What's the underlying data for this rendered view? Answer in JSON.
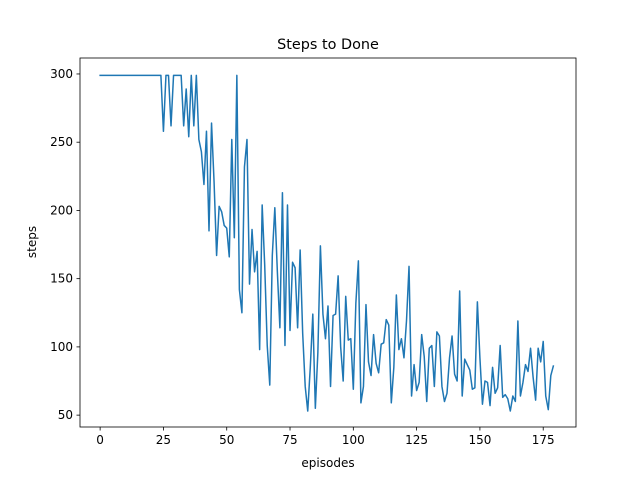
{
  "chart_data": {
    "type": "line",
    "title": "Steps to Done",
    "xlabel": "episodes",
    "ylabel": "steps",
    "xlim": [
      -7.95,
      187.95
    ],
    "ylim": [
      41.3,
      311.7
    ],
    "xticks": [
      0,
      25,
      50,
      75,
      100,
      125,
      150,
      175
    ],
    "yticks": [
      50,
      100,
      150,
      200,
      250,
      300
    ],
    "grid": false,
    "line_color": "#1f77b4",
    "series": [
      {
        "x": [
          0,
          1,
          2,
          3,
          4,
          5,
          6,
          7,
          8,
          9,
          10,
          11,
          12,
          13,
          14,
          15,
          16,
          17,
          18,
          19,
          20,
          21,
          22,
          23,
          24,
          25,
          26,
          27,
          28,
          29,
          30,
          31,
          32,
          33,
          34,
          35,
          36,
          37,
          38,
          39,
          40,
          41,
          42,
          43,
          44,
          45,
          46,
          47,
          48,
          49,
          50,
          51,
          52,
          53,
          54,
          55,
          56,
          57,
          58,
          59,
          60,
          61,
          62,
          63,
          64,
          65,
          66,
          67,
          68,
          69,
          70,
          71,
          72,
          73,
          74,
          75,
          76,
          77,
          78,
          79,
          80,
          81,
          82,
          83,
          84,
          85,
          86,
          87,
          88,
          89,
          90,
          91,
          92,
          93,
          94,
          95,
          96,
          97,
          98,
          99,
          100,
          101,
          102,
          103,
          104,
          105,
          106,
          107,
          108,
          109,
          110,
          111,
          112,
          113,
          114,
          115,
          116,
          117,
          118,
          119,
          120,
          121,
          122,
          123,
          124,
          125,
          126,
          127,
          128,
          129,
          130,
          131,
          132,
          133,
          134,
          135,
          136,
          137,
          138,
          139,
          140,
          141,
          142,
          143,
          144,
          145,
          146,
          147,
          148,
          149,
          150,
          151,
          152,
          153,
          154,
          155,
          156,
          157,
          158,
          159,
          160,
          161,
          162,
          163,
          164,
          165,
          166,
          167,
          168,
          169,
          170,
          171,
          172,
          173,
          174,
          175,
          176,
          177,
          178,
          179
        ],
        "values": [
          299,
          299,
          299,
          299,
          299,
          299,
          299,
          299,
          299,
          299,
          299,
          299,
          299,
          299,
          299,
          299,
          299,
          299,
          299,
          299,
          299,
          299,
          299,
          299,
          299,
          258,
          299,
          299,
          262,
          299,
          299,
          299,
          299,
          262,
          289,
          254,
          299,
          262,
          299,
          252,
          243,
          219,
          258,
          185,
          264,
          221,
          167,
          203,
          199,
          189,
          187,
          166,
          252,
          180,
          299,
          142,
          125,
          232,
          252,
          146,
          186,
          155,
          170,
          98,
          204,
          160,
          101,
          72,
          167,
          202,
          155,
          114,
          213,
          101,
          204,
          112,
          162,
          158,
          114,
          171,
          110,
          71,
          53,
          85,
          124,
          55,
          96,
          174,
          124,
          106,
          130,
          71,
          123,
          124,
          152,
          100,
          75,
          137,
          105,
          106,
          69,
          132,
          163,
          59,
          71,
          131,
          89,
          79,
          109,
          88,
          81,
          102,
          103,
          120,
          116,
          59,
          85,
          138,
          98,
          106,
          92,
          119,
          159,
          64,
          87,
          68,
          74,
          109,
          93,
          60,
          99,
          101,
          71,
          111,
          108,
          71,
          60,
          66,
          92,
          108,
          80,
          75,
          141,
          64,
          91,
          87,
          83,
          69,
          70,
          133,
          92,
          58,
          75,
          74,
          57,
          85,
          66,
          70,
          101,
          63,
          65,
          62,
          53,
          64,
          60,
          119,
          64,
          74,
          87,
          82,
          99,
          78,
          61,
          99,
          89,
          104,
          64,
          54,
          79,
          86
        ]
      }
    ]
  }
}
